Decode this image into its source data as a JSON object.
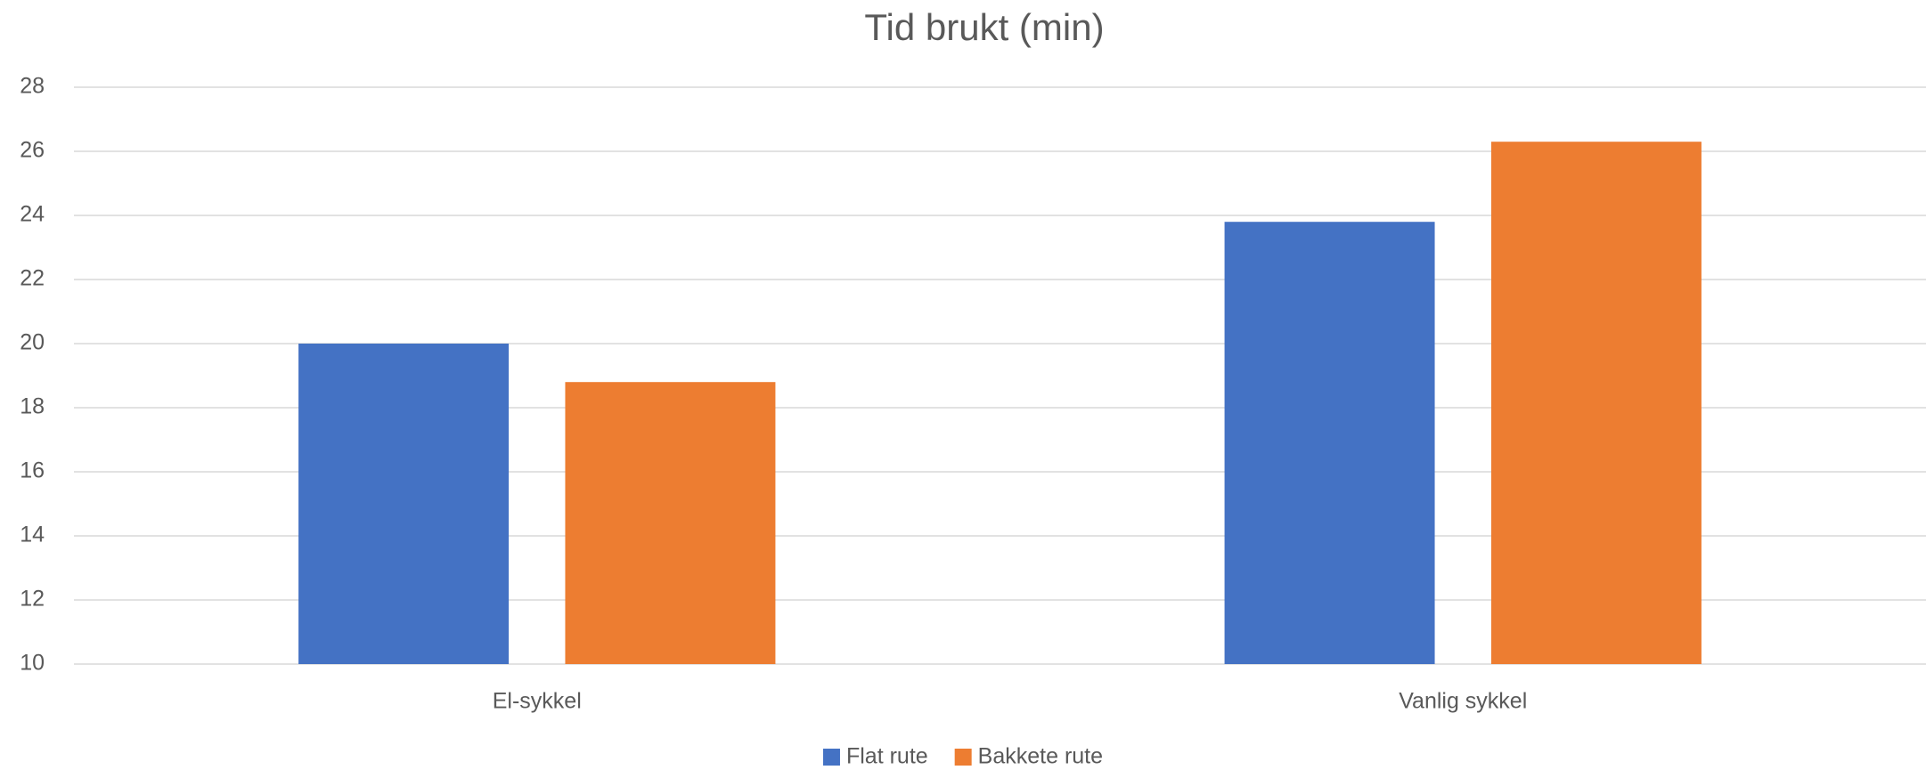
{
  "chart_data": {
    "type": "bar",
    "title": "Tid brukt (min)",
    "categories": [
      "El-sykkel",
      "Vanlig sykkel"
    ],
    "series": [
      {
        "name": "Flat rute",
        "color": "#4472c4",
        "values": [
          20,
          23.8
        ]
      },
      {
        "name": "Bakkete rute",
        "color": "#ed7d31",
        "values": [
          18.8,
          26.3
        ]
      }
    ],
    "ylim": [
      10,
      28
    ],
    "yticks": [
      10,
      12,
      14,
      16,
      18,
      20,
      22,
      24,
      26,
      28
    ],
    "grid": true,
    "legend": "bottom"
  }
}
